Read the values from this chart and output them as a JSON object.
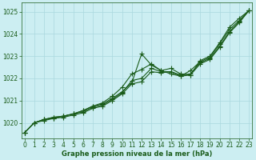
{
  "xlabel": "Graphe pression niveau de la mer (hPa)",
  "background_color": "#cceef2",
  "grid_color": "#aad8de",
  "line_color": "#1a5c1a",
  "ylim": [
    1019.3,
    1025.4
  ],
  "xlim": [
    -0.3,
    23.3
  ],
  "yticks": [
    1020,
    1021,
    1022,
    1023,
    1024,
    1025
  ],
  "xticks": [
    0,
    1,
    2,
    3,
    4,
    5,
    6,
    7,
    8,
    9,
    10,
    11,
    12,
    13,
    14,
    15,
    16,
    17,
    18,
    19,
    20,
    21,
    22,
    23
  ],
  "lines": [
    [
      1019.55,
      1020.0,
      1020.15,
      1020.25,
      1020.3,
      1020.4,
      1020.55,
      1020.75,
      1020.85,
      1021.1,
      1021.4,
      1021.8,
      1023.1,
      1022.6,
      1022.35,
      1022.45,
      1022.2,
      1022.15,
      1022.8,
      1023.0,
      1023.6,
      1024.3,
      1024.7,
      1025.05
    ],
    [
      1019.55,
      1020.0,
      1020.15,
      1020.25,
      1020.3,
      1020.4,
      1020.55,
      1020.75,
      1020.9,
      1021.2,
      1021.6,
      1022.2,
      1022.4,
      1022.65,
      1022.35,
      1022.2,
      1022.1,
      1022.35,
      1022.75,
      1022.95,
      1023.55,
      1024.2,
      1024.6,
      1025.05
    ],
    [
      1019.55,
      1020.0,
      1020.15,
      1020.2,
      1020.3,
      1020.4,
      1020.5,
      1020.7,
      1020.8,
      1021.05,
      1021.35,
      1021.9,
      1022.0,
      1022.45,
      1022.3,
      1022.3,
      1022.15,
      1022.2,
      1022.7,
      1022.9,
      1023.45,
      1024.1,
      1024.55,
      1025.05
    ],
    [
      1019.55,
      1020.0,
      1020.1,
      1020.2,
      1020.25,
      1020.35,
      1020.45,
      1020.65,
      1020.75,
      1021.0,
      1021.3,
      1021.75,
      1021.85,
      1022.3,
      1022.25,
      1022.3,
      1022.1,
      1022.15,
      1022.65,
      1022.85,
      1023.4,
      1024.05,
      1024.5,
      1025.05
    ]
  ],
  "marker": "+",
  "markersize": 4,
  "linewidth": 0.8,
  "label_fontsize": 5.5,
  "xlabel_fontsize": 6.0
}
